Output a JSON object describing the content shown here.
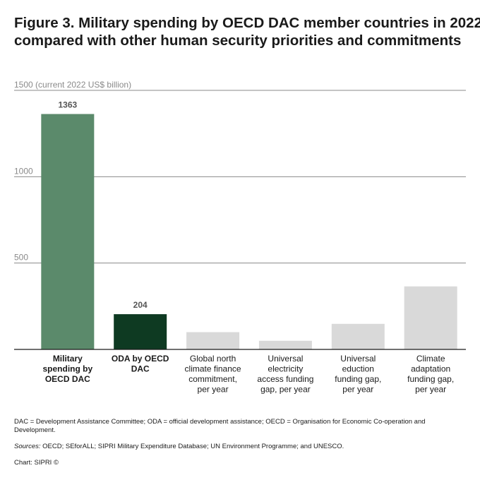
{
  "title_lines": [
    "Figure 3. Military spending by OECD DAC member countries in 2022",
    "compared with other human security priorities and commitments"
  ],
  "colors": {
    "highlight": "#5b8a6b",
    "dark": "#0e3a22",
    "neutral": "#d9d9d9",
    "gridline": "#8a8a8a",
    "axis_label": "#8a8a8a"
  },
  "chart_data": {
    "type": "bar",
    "title": "Figure 3. Military spending by OECD DAC member countries in 2022 compared with other human security priorities and commitments",
    "unit_label": "(current 2022 US$ billion)",
    "ylim": [
      0,
      1500
    ],
    "yticks": [
      500,
      1000,
      1500
    ],
    "grid": true,
    "categories": [
      [
        "Military",
        "spending by",
        "OECD DAC"
      ],
      [
        "ODA by OECD",
        "DAC"
      ],
      [
        "Global north",
        "climate finance",
        "commitment,",
        "per year"
      ],
      [
        "Universal",
        "electricity",
        "access funding",
        "gap, per year"
      ],
      [
        "Universal",
        "eduction",
        "funding gap,",
        "per year"
      ],
      [
        "Climate",
        "adaptation",
        "funding gap,",
        "per year"
      ]
    ],
    "values": [
      1363,
      204,
      100,
      50,
      148,
      365
    ],
    "value_labels": [
      "1363",
      "204",
      "",
      "",
      "",
      ""
    ],
    "bar_colors": [
      "#5b8a6b",
      "#0e3a22",
      "#d9d9d9",
      "#d9d9d9",
      "#d9d9d9",
      "#d9d9d9"
    ],
    "bold_categories": [
      true,
      true,
      false,
      false,
      false,
      false
    ]
  },
  "notes": {
    "abbreviations": "DAC = Development Assistance Committee; ODA = official development assistance; OECD = Organisation for Economic Co-operation and Development.",
    "sources_label": "Sources:",
    "sources": "OECD; SEforALL; SIPRI Military Expenditure Database; UN Environment Programme; and UNESCO.",
    "credit": "Chart: SIPRI ©"
  }
}
